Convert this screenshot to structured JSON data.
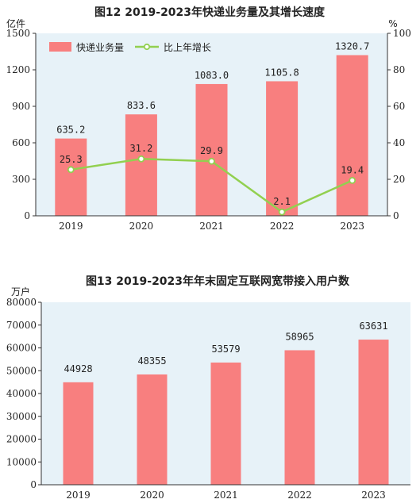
{
  "colors": {
    "plot_bg": "#e7f2f8",
    "bar": "#f87f7f",
    "line": "#92d050",
    "marker_fill": "#ffffff"
  },
  "chart_data": [
    {
      "type": "bar+line",
      "title": "图12   2019-2023年快递业务量及其增长速度",
      "y_left_unit": "亿件",
      "y_right_unit": "%",
      "categories": [
        "2019",
        "2020",
        "2021",
        "2022",
        "2023"
      ],
      "ylim_left": [
        0,
        1500
      ],
      "yticks_left": [
        0,
        300,
        600,
        900,
        1200,
        1500
      ],
      "ylim_right": [
        0,
        100
      ],
      "yticks_right": [
        0,
        20,
        40,
        60,
        80,
        100
      ],
      "legend_position": "top-left",
      "grid": false,
      "series": [
        {
          "name": "快递业务量",
          "type": "bar",
          "axis": "left",
          "values": [
            635.2,
            833.6,
            1083.0,
            1105.8,
            1320.7
          ],
          "labels": [
            "635.2",
            "833.6",
            "1083.0",
            "1105.8",
            "1320.7"
          ]
        },
        {
          "name": "比上年增长",
          "type": "line",
          "axis": "right",
          "values": [
            25.3,
            31.2,
            29.9,
            2.1,
            19.4
          ],
          "labels": [
            "25.3",
            "31.2",
            "29.9",
            "2.1",
            "19.4"
          ]
        }
      ]
    },
    {
      "type": "bar",
      "title": "图13   2019-2023年年末固定互联网宽带接入用户数",
      "y_unit": "万户",
      "categories": [
        "2019",
        "2020",
        "2021",
        "2022",
        "2023"
      ],
      "ylim": [
        0,
        80000
      ],
      "yticks": [
        0,
        10000,
        20000,
        30000,
        40000,
        50000,
        60000,
        70000,
        80000
      ],
      "grid": false,
      "series": [
        {
          "type": "bar",
          "values": [
            44928,
            48355,
            53579,
            58965,
            63631
          ],
          "labels": [
            "44928",
            "48355",
            "53579",
            "58965",
            "63631"
          ]
        }
      ]
    }
  ]
}
